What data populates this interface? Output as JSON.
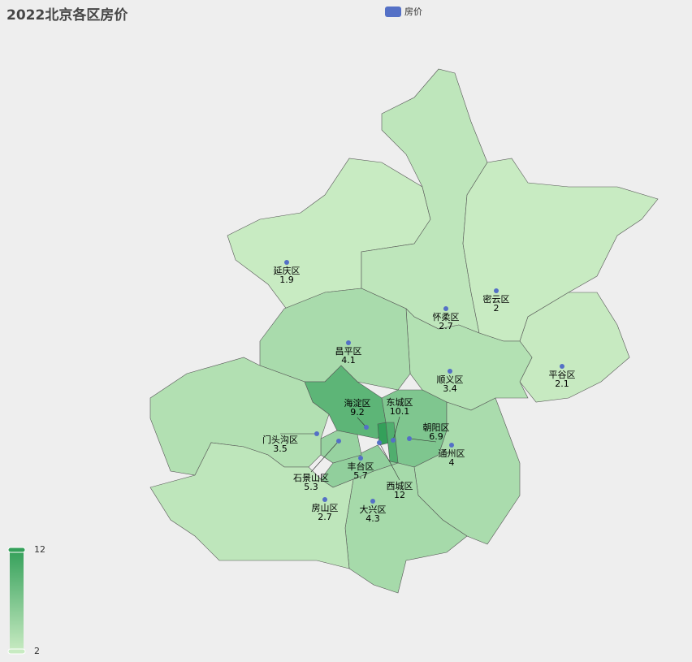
{
  "title": "2022北京各区房价",
  "legend": {
    "label": "房价",
    "color": "#5470c6"
  },
  "visual_map": {
    "max_label": "12",
    "min_label": "2",
    "min": 2,
    "max": 12,
    "color_low": "#c8ebc2",
    "color_high": "#34a05a"
  },
  "chart_data": {
    "type": "map",
    "region": "北京",
    "series_name": "房价",
    "data": [
      {
        "name": "延庆区",
        "value": 1.9
      },
      {
        "name": "怀柔区",
        "value": 2.7
      },
      {
        "name": "密云区",
        "value": 2
      },
      {
        "name": "平谷区",
        "value": 2.1
      },
      {
        "name": "顺义区",
        "value": 3.4
      },
      {
        "name": "昌平区",
        "value": 4.1
      },
      {
        "name": "海淀区",
        "value": 9.2
      },
      {
        "name": "朝阳区",
        "value": 6.9
      },
      {
        "name": "西城区",
        "value": 12
      },
      {
        "name": "东城区",
        "value": 10.1
      },
      {
        "name": "通州区",
        "value": 4
      },
      {
        "name": "大兴区",
        "value": 4.3
      },
      {
        "name": "丰台区",
        "value": 5.7
      },
      {
        "name": "石景山区",
        "value": 5.3
      },
      {
        "name": "门头沟区",
        "value": 3.5
      },
      {
        "name": "房山区",
        "value": 2.7
      }
    ]
  }
}
